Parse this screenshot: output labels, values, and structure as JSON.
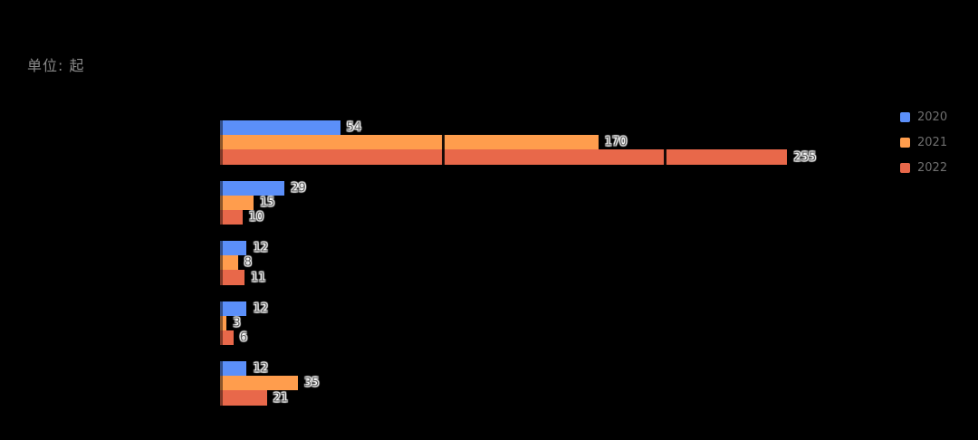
{
  "background_color": "#000000",
  "unit_label": "单位: 起",
  "legend": {
    "position": "top-right",
    "items": [
      {
        "label": "2020",
        "color": "#5B8FF9"
      },
      {
        "label": "2021",
        "color": "#FF9D4D"
      },
      {
        "label": "2022",
        "color": "#E8684A"
      }
    ]
  },
  "chart_data": {
    "type": "bar",
    "orientation": "horizontal",
    "title": "",
    "xlabel": "",
    "ylabel": "",
    "unit": "起",
    "categories": [
      "",
      "",
      "",
      "",
      ""
    ],
    "series": [
      {
        "name": "2020",
        "color": "#5B8FF9",
        "values": [
          54,
          29,
          12,
          12,
          12
        ]
      },
      {
        "name": "2021",
        "color": "#FF9D4D",
        "values": [
          170,
          15,
          8,
          3,
          35
        ]
      },
      {
        "name": "2022",
        "color": "#E8684A",
        "values": [
          255,
          10,
          11,
          6,
          21
        ]
      }
    ],
    "xlim": [
      0,
      300
    ],
    "gridline_values": [
      0,
      100,
      200,
      300
    ],
    "grid_visible_over_bars": true,
    "value_labels": true,
    "value_label_color": "#5d5d5d",
    "value_label_halo": "#ffffff",
    "category_labels_visible": false
  }
}
